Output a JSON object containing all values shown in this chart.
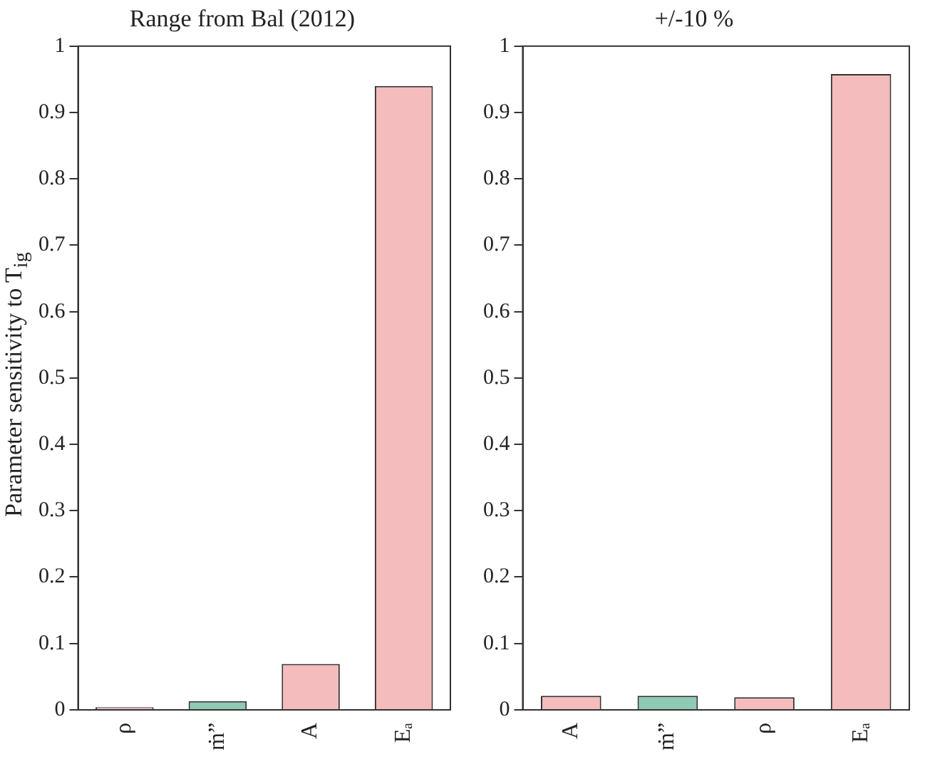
{
  "chart_data": [
    {
      "type": "bar",
      "title": "Range from Bal (2012)",
      "ylabel": "Parameter sensitivity to T$_{ig}$",
      "categories": [
        "ρ",
        "ṁ”",
        "A",
        "Eₐ"
      ],
      "values": [
        0.004,
        0.013,
        0.069,
        0.94
      ],
      "colors": [
        "#f4bcbc",
        "#8ecab4",
        "#f4bcbc",
        "#f4bcbc"
      ],
      "ylim": [
        0,
        1
      ],
      "yticks": [
        0,
        0.1,
        0.2,
        0.3,
        0.4,
        0.5,
        0.6,
        0.7,
        0.8,
        0.9,
        1
      ]
    },
    {
      "type": "bar",
      "title": "+/-10 %",
      "categories": [
        "A",
        "ṁ”",
        "ρ",
        "Eₐ"
      ],
      "values": [
        0.021,
        0.021,
        0.019,
        0.958
      ],
      "colors": [
        "#f4bcbc",
        "#8ecab4",
        "#f4bcbc",
        "#f4bcbc"
      ],
      "ylim": [
        0,
        1
      ],
      "yticks": [
        0,
        0.1,
        0.2,
        0.3,
        0.4,
        0.5,
        0.6,
        0.7,
        0.8,
        0.9,
        1
      ]
    }
  ]
}
